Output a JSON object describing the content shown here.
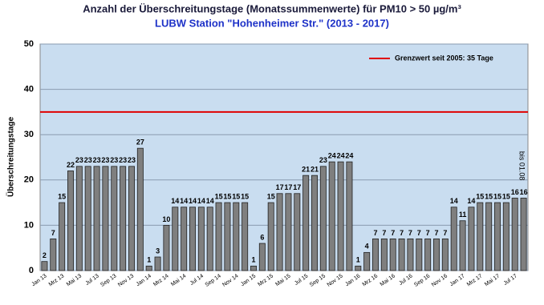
{
  "chart_data": {
    "type": "bar",
    "title": "Anzahl der Überschreitungstage (Monatssummenwerte) für PM10 > 50 µg/m³",
    "subtitle": "LUBW Station \"Hohenheimer Str.\" (2013 - 2017)",
    "y_label": "Überschreitungstage",
    "categories": [
      "Jan 13",
      null,
      "Mrz 13",
      null,
      "Mai 13",
      null,
      "Jul 13",
      null,
      "Sep 13",
      null,
      "Nov 13",
      null,
      "Jan 14",
      null,
      "Mrz 14",
      null,
      "Mai 14",
      null,
      "Jul 14",
      null,
      "Sep 14",
      null,
      "Nov 14",
      null,
      "Jan 15",
      null,
      "Mrz 15",
      null,
      "Mai 15",
      null,
      "Jul 15",
      null,
      "Sep 15",
      null,
      "Nov 15",
      null,
      "Jan 16",
      null,
      "Mrz 16",
      null,
      "Mai 16",
      null,
      "Jul 16",
      null,
      "Sep 16",
      null,
      "Nov 16",
      null,
      "Jan 17",
      null,
      "Mrz 17",
      null,
      "Mai 17",
      null,
      "Jul 17",
      null
    ],
    "values": [
      2,
      7,
      15,
      22,
      23,
      23,
      23,
      23,
      23,
      23,
      23,
      27,
      1,
      3,
      10,
      14,
      14,
      14,
      14,
      14,
      15,
      15,
      15,
      15,
      1,
      6,
      15,
      17,
      17,
      17,
      21,
      21,
      23,
      24,
      24,
      24,
      1,
      4,
      7,
      7,
      7,
      7,
      7,
      7,
      7,
      7,
      7,
      14,
      11,
      14,
      15,
      15,
      15,
      15,
      16,
      16
    ],
    "color": "#7f7f7f",
    "ylim": [
      0,
      50
    ],
    "yticks": [
      0,
      10,
      20,
      30,
      40,
      50
    ],
    "grid": true,
    "reference_line": {
      "value": 35,
      "label": "Grenzwert seit 2005: 35 Tage",
      "color": "#e00000"
    },
    "legend_position": "upper right",
    "annotation": "bis 01.08"
  }
}
